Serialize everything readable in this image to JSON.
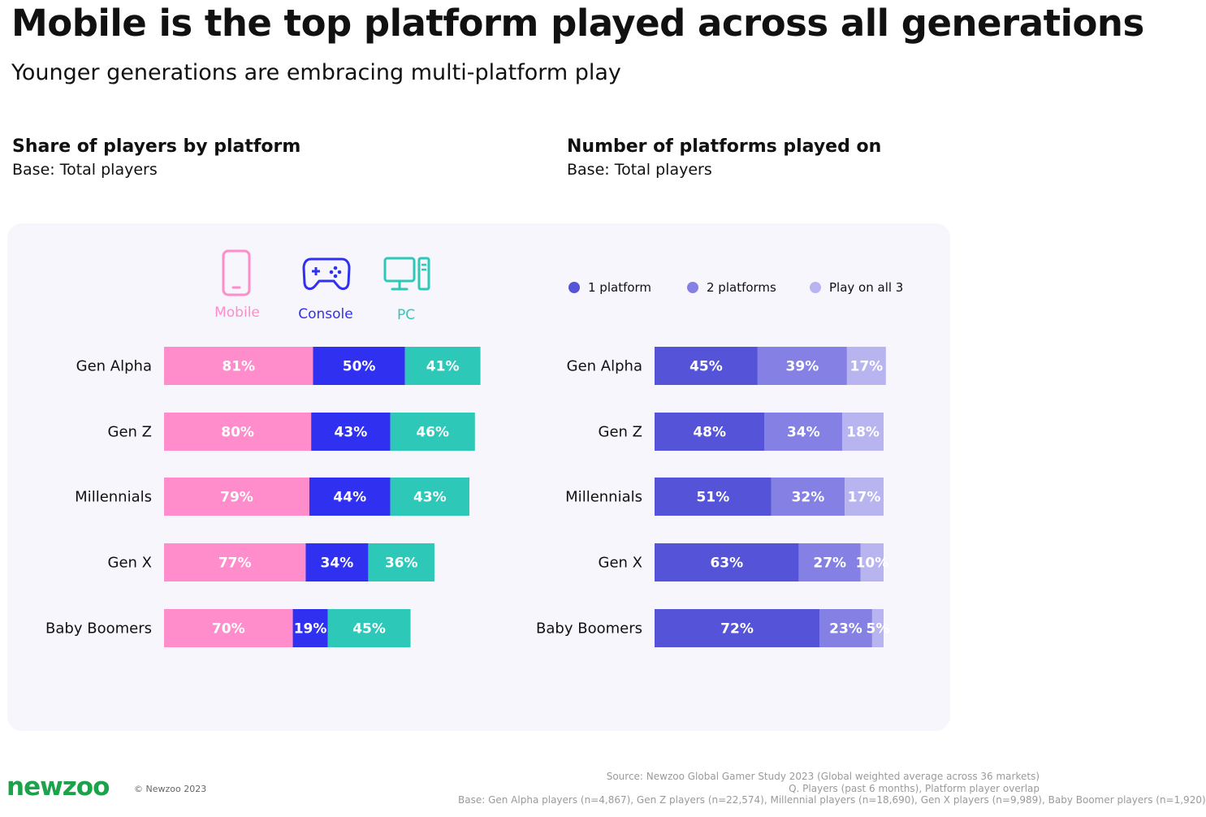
{
  "title": "Mobile is the top platform played across all generations",
  "subtitle": "Younger generations are embracing multi-platform play",
  "left_section": {
    "title": "Share of players by platform",
    "base": "Base: Total players"
  },
  "right_section": {
    "title": "Number of platforms played on",
    "base": "Base: Total players"
  },
  "platforms": [
    {
      "label": "Mobile",
      "icon": "mobile-phone-icon",
      "color": "#ff8ccb"
    },
    {
      "label": "Console",
      "icon": "gamepad-icon",
      "color": "#3030f0"
    },
    {
      "label": "PC",
      "icon": "desktop-pc-icon",
      "color": "#2ec8b8"
    }
  ],
  "legend": [
    {
      "label": "1 platform",
      "color": "#5554d8"
    },
    {
      "label": "2 platforms",
      "color": "#8480e4"
    },
    {
      "label": "Play on all 3",
      "color": "#b8b4f0"
    }
  ],
  "chart_data": [
    {
      "type": "bar",
      "orientation": "horizontal-stacked",
      "title": "Share of players by platform",
      "categories": [
        "Gen Alpha",
        "Gen Z",
        "Millennials",
        "Gen X",
        "Baby Boomers"
      ],
      "series": [
        {
          "name": "Mobile",
          "values": [
            81,
            80,
            79,
            77,
            70
          ],
          "labels": [
            "81%",
            "80%",
            "79%",
            "77%",
            "70%"
          ],
          "color": "#ff8ccb"
        },
        {
          "name": "Console",
          "values": [
            50,
            43,
            44,
            34,
            19
          ],
          "labels": [
            "50%",
            "43%",
            "44%",
            "34%",
            "19%"
          ],
          "color": "#3030f0"
        },
        {
          "name": "PC",
          "values": [
            41,
            46,
            43,
            36,
            45
          ],
          "labels": [
            "41%",
            "46%",
            "43%",
            "36%",
            "45%"
          ],
          "color": "#2ec8b8"
        }
      ]
    },
    {
      "type": "bar",
      "orientation": "horizontal-stacked",
      "title": "Number of platforms played on",
      "categories": [
        "Gen Alpha",
        "Gen Z",
        "Millennials",
        "Gen X",
        "Baby Boomers"
      ],
      "series": [
        {
          "name": "1 platform",
          "values": [
            45,
            48,
            51,
            63,
            72
          ],
          "labels": [
            "45%",
            "48%",
            "51%",
            "63%",
            "72%"
          ],
          "color": "#5554d8"
        },
        {
          "name": "2 platforms",
          "values": [
            39,
            34,
            32,
            27,
            23
          ],
          "labels": [
            "39%",
            "34%",
            "32%",
            "27%",
            "23%"
          ],
          "color": "#8480e4"
        },
        {
          "name": "Play on all 3",
          "values": [
            17,
            18,
            17,
            10,
            5
          ],
          "labels": [
            "17%",
            "18%",
            "17%",
            "10%",
            "5%"
          ],
          "color": "#b8b4f0"
        }
      ]
    }
  ],
  "footer": {
    "logo": "newzoo",
    "logo_color": "#1aa34a",
    "copyright": "© Newzoo 2023",
    "source": "Source: Newzoo Global Gamer Study 2023 (Global weighted average across 36 markets)",
    "question": "Q. Players (past 6 months), Platform player overlap",
    "base": "Base: Gen Alpha players (n=4,867), Gen Z players (n=22,574), Millennial players (n=18,690), Gen X players (n=9,989), Baby Boomer players (n=1,920)"
  }
}
